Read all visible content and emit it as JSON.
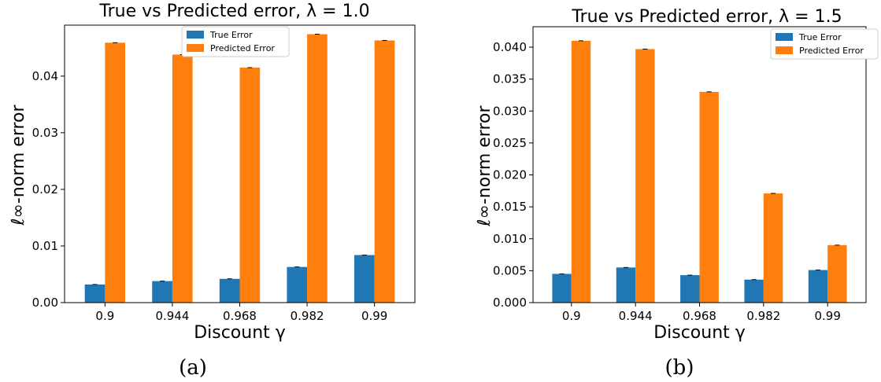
{
  "colors": {
    "true_error": "#1f77b4",
    "predicted_error": "#ff7f0e"
  },
  "chart_data": [
    {
      "type": "bar",
      "title": "True vs Predicted error, λ = 1.0",
      "xlabel": "Discount γ",
      "ylabel": "ℓ∞-norm error",
      "caption": "(a)",
      "categories": [
        "0.9",
        "0.944",
        "0.968",
        "0.982",
        "0.99"
      ],
      "series": [
        {
          "name": "True Error",
          "values": [
            0.0032,
            0.0038,
            0.0042,
            0.0063,
            0.0084
          ]
        },
        {
          "name": "Predicted Error",
          "values": [
            0.0459,
            0.0438,
            0.0415,
            0.0474,
            0.0463
          ]
        }
      ],
      "ylim": [
        0,
        0.049
      ],
      "yticks": [
        "0.00",
        "0.01",
        "0.02",
        "0.03",
        "0.04"
      ],
      "ytick_values": [
        0,
        0.01,
        0.02,
        0.03,
        0.04
      ],
      "legend_position": "top-center",
      "grid": false
    },
    {
      "type": "bar",
      "title": "True vs Predicted error, λ = 1.5",
      "xlabel": "Discount γ",
      "ylabel": "ℓ∞-norm error",
      "caption": "(b)",
      "categories": [
        "0.9",
        "0.944",
        "0.968",
        "0.982",
        "0.99"
      ],
      "series": [
        {
          "name": "True Error",
          "values": [
            0.0045,
            0.0055,
            0.0043,
            0.0036,
            0.0051
          ]
        },
        {
          "name": "Predicted Error",
          "values": [
            0.041,
            0.0397,
            0.033,
            0.0171,
            0.009
          ]
        }
      ],
      "ylim": [
        0,
        0.0432
      ],
      "yticks": [
        "0.000",
        "0.005",
        "0.010",
        "0.015",
        "0.020",
        "0.025",
        "0.030",
        "0.035",
        "0.040"
      ],
      "ytick_values": [
        0,
        0.005,
        0.01,
        0.015,
        0.02,
        0.025,
        0.03,
        0.035,
        0.04
      ],
      "legend_position": "top-right",
      "grid": false
    }
  ]
}
